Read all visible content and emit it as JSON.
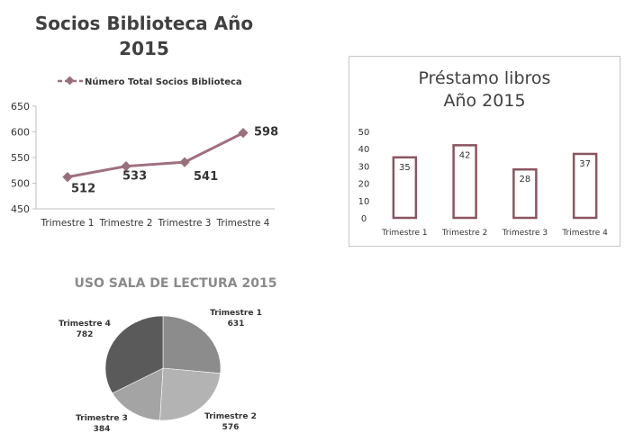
{
  "chart_data": [
    {
      "type": "line",
      "title_line1": "Socios Biblioteca Año",
      "title_line2": "2015",
      "categories": [
        "Trimestre 1",
        "Trimestre 2",
        "Trimestre 3",
        "Trimestre 4"
      ],
      "series": [
        {
          "name": "Número Total Socios Biblioteca",
          "values": [
            512,
            533,
            541,
            598
          ]
        }
      ],
      "yticks": [
        450,
        500,
        550,
        600,
        650
      ],
      "ylim": [
        450,
        650
      ],
      "legend_position": "top",
      "colors": {
        "line": "#a0707e",
        "marker": "#9a6f7c"
      }
    },
    {
      "type": "bar",
      "title_line1": "Préstamo libros",
      "title_line2": "Año 2015",
      "categories": [
        "Trimestre 1",
        "Trimestre 2",
        "Trimestre 3",
        "Trimestre 4"
      ],
      "values": [
        35,
        42,
        28,
        37
      ],
      "yticks": [
        0,
        10,
        20,
        30,
        40,
        50
      ],
      "ylim": [
        0,
        50
      ],
      "colors": {
        "bar_stroke": "#8a5560",
        "bar_fill": "#ffffff"
      }
    },
    {
      "type": "pie",
      "title": "USO SALA DE LECTURA",
      "title_suffix": "2015",
      "labels": [
        "Trimestre 1",
        "Trimestre 2",
        "Trimestre 3",
        "Trimestre 4"
      ],
      "values": [
        631,
        576,
        384,
        782
      ],
      "colors": [
        "#8c8c8c",
        "#b3b3b3",
        "#a4a4a4",
        "#5a5a5a"
      ]
    }
  ]
}
